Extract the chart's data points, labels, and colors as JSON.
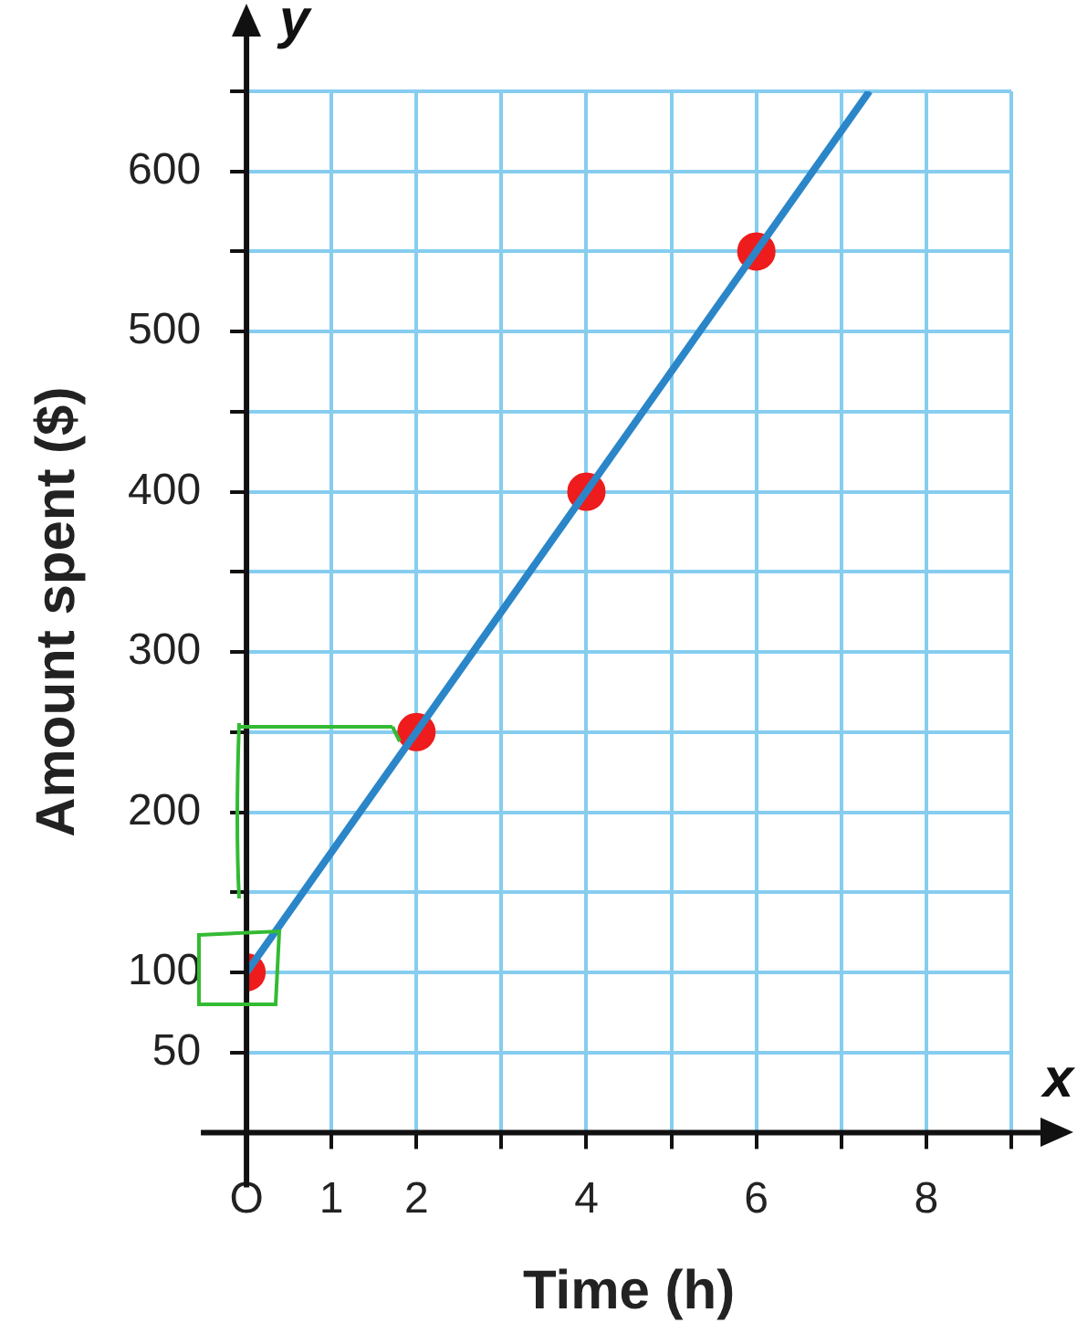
{
  "chart_data": {
    "type": "line",
    "xlabel": "Time (h)",
    "ylabel": "Amount spent ($)",
    "xlim": [
      0,
      9
    ],
    "ylim": [
      0,
      650
    ],
    "xticks": [
      {
        "value": 0,
        "label": "O"
      },
      {
        "value": 1,
        "label": "1"
      },
      2,
      {
        "value": 3,
        "label": null
      },
      4,
      {
        "value": 5,
        "label": null
      },
      6,
      {
        "value": 7,
        "label": null
      },
      8,
      {
        "value": 9,
        "label": null
      }
    ],
    "yticks": [
      {
        "value": 0,
        "label": null
      },
      {
        "value": 50,
        "label": "50"
      },
      100,
      {
        "value": 150,
        "label": null
      },
      200,
      {
        "value": 250,
        "label": null
      },
      300,
      {
        "value": 350,
        "label": null
      },
      400,
      {
        "value": 450,
        "label": null
      },
      500,
      {
        "value": 550,
        "label": null
      },
      600,
      {
        "value": 650,
        "label": null
      }
    ],
    "grid": true,
    "series": [
      {
        "type": "line",
        "color": "#2a86c8",
        "x": [
          0,
          7.33
        ],
        "values": [
          100,
          650
        ],
        "marker": "none"
      },
      {
        "type": "scatter",
        "color": "#ee1c1c",
        "x": [
          0,
          2,
          4,
          6
        ],
        "values": [
          100,
          250,
          400,
          550
        ],
        "marker": "circle"
      }
    ],
    "annotations": [
      "y",
      "x"
    ]
  }
}
